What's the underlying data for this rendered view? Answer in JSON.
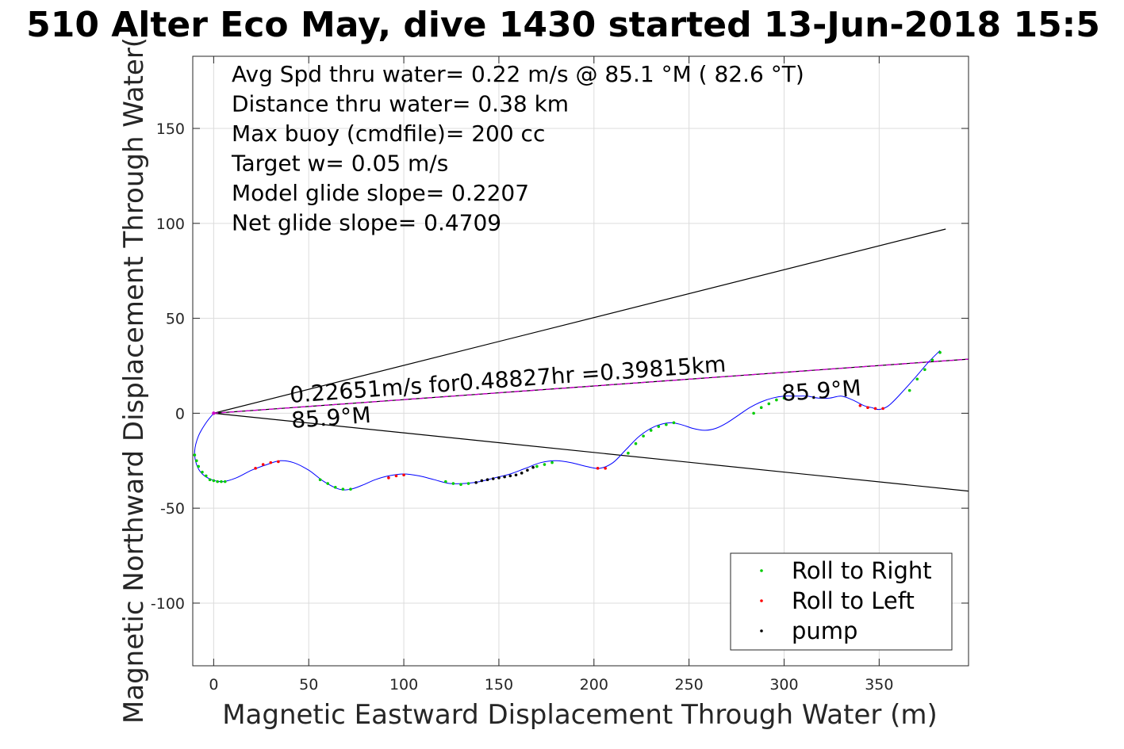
{
  "chart_data": {
    "type": "scatter",
    "title": "510 Alter Eco May, dive 1430 started 13-Jun-2018 15:5",
    "xlabel": "Magnetic Eastward Displacement Through Water (m)",
    "ylabel": "Magnetic Northward Displacement Through Water(",
    "xlim": [
      -11,
      397
    ],
    "ylim": [
      -133,
      188
    ],
    "xticks": [
      0,
      50,
      100,
      150,
      200,
      250,
      300,
      350
    ],
    "yticks": [
      -100,
      -50,
      0,
      50,
      100,
      150
    ],
    "grid": true,
    "annotations": [
      "Avg Spd thru water=  0.22 m/s @  85.1 °M ( 82.6 °T)",
      "Distance thru water=  0.38 km",
      "Max buoy (cmdfile)= 200 cc",
      "Target w= 0.05 m/s",
      "Model glide slope= 0.2207",
      "Net glide slope= 0.4709"
    ],
    "track_label": "0.22651m/s for0.48827hr =0.39815km",
    "heading_label_start": "85.9°M",
    "heading_label_end": "85.9°M",
    "cone_lines": [
      {
        "x": [
          0,
          385
        ],
        "y": [
          0,
          97
        ]
      },
      {
        "x": [
          0,
          397
        ],
        "y": [
          0,
          -41
        ]
      }
    ],
    "net_track": {
      "x": [
        0,
        397
      ],
      "y": [
        0,
        28.5
      ],
      "color": "#cc00cc"
    },
    "path": {
      "color": "#0000ff",
      "x": [
        0,
        -4,
        -8,
        -10,
        -9,
        -6,
        -1,
        5,
        12,
        20,
        28,
        35,
        42,
        50,
        58,
        66,
        72,
        78,
        85,
        92,
        100,
        108,
        116,
        124,
        132,
        140,
        148,
        156,
        164,
        172,
        180,
        188,
        196,
        203,
        210,
        217,
        224,
        232,
        240,
        246,
        252,
        258,
        264,
        270,
        276,
        282,
        288,
        294,
        300,
        306,
        312,
        318,
        324,
        330,
        336,
        342,
        346,
        350,
        355,
        362,
        370,
        376,
        382
      ],
      "y": [
        0,
        -5,
        -12,
        -20,
        -27,
        -32,
        -35,
        -36,
        -34,
        -30,
        -27,
        -25,
        -26,
        -30,
        -36,
        -40,
        -40,
        -38,
        -35,
        -33,
        -32,
        -33,
        -35,
        -37,
        -37,
        -36,
        -34,
        -32,
        -29,
        -26,
        -25,
        -26,
        -28,
        -29,
        -26,
        -19,
        -12,
        -7,
        -5,
        -6,
        -8,
        -9,
        -8,
        -5,
        -1,
        3,
        6,
        8,
        9,
        9,
        9,
        8,
        8,
        9,
        7,
        4,
        3,
        2,
        4,
        11,
        20,
        27,
        33
      ]
    },
    "series": [
      {
        "name": "Roll to Right",
        "color": "#00cc00",
        "x": [
          -10,
          -9,
          -8,
          -6,
          -4,
          -2,
          0,
          2,
          4,
          6,
          56,
          60,
          64,
          68,
          72,
          122,
          126,
          130,
          134,
          170,
          174,
          178,
          218,
          222,
          226,
          230,
          234,
          238,
          242,
          284,
          288,
          292,
          296,
          300,
          366,
          370,
          374,
          378,
          382
        ],
        "y": [
          -22,
          -25,
          -28,
          -31,
          -33,
          -35,
          -35.5,
          -36,
          -36,
          -36,
          -35,
          -37,
          -39,
          -40,
          -40,
          -36,
          -37,
          -37.5,
          -37,
          -28,
          -27,
          -26,
          -21,
          -16,
          -12,
          -9,
          -7,
          -6,
          -5,
          0,
          3,
          5,
          7,
          8,
          12,
          18,
          23,
          28,
          32
        ]
      },
      {
        "name": "Roll to Left",
        "color": "#ff0000",
        "x": [
          22,
          26,
          30,
          34,
          92,
          96,
          100,
          202,
          206,
          340,
          344,
          348,
          352
        ],
        "y": [
          -29,
          -27,
          -26,
          -25.5,
          -34,
          -33,
          -32.5,
          -29,
          -29,
          4,
          3,
          2.5,
          2.5
        ]
      },
      {
        "name": "pump",
        "color": "#000000",
        "x": [
          138,
          141,
          144,
          147,
          150,
          153,
          156,
          159,
          162,
          165,
          168
        ],
        "y": [
          -36.5,
          -35.5,
          -35,
          -34.5,
          -34,
          -33.5,
          -33,
          -32.5,
          -31.5,
          -30,
          -28.5
        ]
      }
    ],
    "legend": [
      "Roll to Right",
      "Roll to Left",
      "pump"
    ],
    "legend_position": "bottom-right"
  }
}
